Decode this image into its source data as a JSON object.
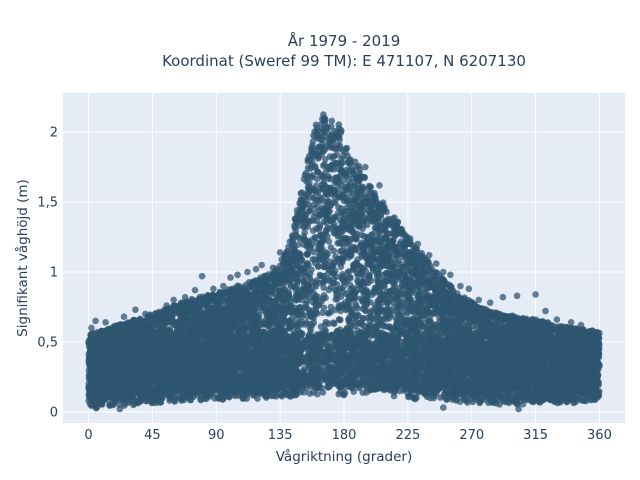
{
  "chart_data": {
    "type": "scatter",
    "title": [
      "År 1979 - 2019",
      "Koordinat (Sweref 99 TM): E 471107, N 6207130"
    ],
    "xlabel": "Vågriktning (grader)",
    "ylabel": "Signifikant våghöjd (m)",
    "xlim": [
      -18,
      378
    ],
    "ylim": [
      -0.08,
      2.28
    ],
    "xticks": [
      0,
      45,
      90,
      135,
      180,
      225,
      270,
      315,
      360
    ],
    "xtick_labels": [
      "0",
      "45",
      "90",
      "135",
      "180",
      "225",
      "270",
      "315",
      "360"
    ],
    "yticks": [
      0,
      0.5,
      1,
      1.5,
      2
    ],
    "ytick_labels": [
      "0",
      "0,5",
      "1",
      "1,5",
      "2"
    ],
    "grid": true,
    "legend": "none",
    "colors": {
      "marker": "#2f5670",
      "plot_bg": "#e5ecf6",
      "grid": "#ffffff",
      "text": "#2a3f5f"
    },
    "series": [
      {
        "marker_opacity": 0.75,
        "envelope": {
          "x": [
            0,
            20,
            45,
            70,
            90,
            110,
            130,
            140,
            150,
            160,
            167,
            175,
            185,
            200,
            215,
            230,
            245,
            260,
            275,
            290,
            305,
            320,
            340,
            360
          ],
          "y_min": [
            0.02,
            0.04,
            0.06,
            0.08,
            0.08,
            0.09,
            0.1,
            0.1,
            0.11,
            0.11,
            0.12,
            0.12,
            0.12,
            0.11,
            0.1,
            0.09,
            0.08,
            0.07,
            0.06,
            0.05,
            0.05,
            0.06,
            0.06,
            0.08
          ],
          "y_max": [
            0.55,
            0.62,
            0.7,
            0.8,
            0.85,
            0.92,
            1.0,
            1.15,
            1.6,
            2.05,
            2.15,
            2.1,
            1.85,
            1.6,
            1.4,
            1.2,
            1.0,
            0.85,
            0.75,
            0.7,
            0.68,
            0.65,
            0.6,
            0.58
          ]
        },
        "outliers": [
          {
            "x": 2,
            "y": 0.6
          },
          {
            "x": 5,
            "y": 0.65
          },
          {
            "x": 12,
            "y": 0.64
          },
          {
            "x": 25,
            "y": 0.68
          },
          {
            "x": 33,
            "y": 0.73
          },
          {
            "x": 40,
            "y": 0.7
          },
          {
            "x": 55,
            "y": 0.76
          },
          {
            "x": 60,
            "y": 0.8
          },
          {
            "x": 68,
            "y": 0.82
          },
          {
            "x": 75,
            "y": 0.87
          },
          {
            "x": 80,
            "y": 0.97
          },
          {
            "x": 88,
            "y": 0.88
          },
          {
            "x": 95,
            "y": 0.9
          },
          {
            "x": 100,
            "y": 0.96
          },
          {
            "x": 105,
            "y": 0.98
          },
          {
            "x": 112,
            "y": 1.0
          },
          {
            "x": 118,
            "y": 1.02
          },
          {
            "x": 122,
            "y": 1.05
          },
          {
            "x": 130,
            "y": 1.03
          },
          {
            "x": 135,
            "y": 1.14
          },
          {
            "x": 195,
            "y": 1.75
          },
          {
            "x": 205,
            "y": 1.62
          },
          {
            "x": 210,
            "y": 1.43
          },
          {
            "x": 220,
            "y": 1.3
          },
          {
            "x": 226,
            "y": 1.22
          },
          {
            "x": 232,
            "y": 1.2
          },
          {
            "x": 240,
            "y": 1.12
          },
          {
            "x": 245,
            "y": 1.06
          },
          {
            "x": 250,
            "y": 1.0
          },
          {
            "x": 255,
            "y": 0.98
          },
          {
            "x": 262,
            "y": 0.9
          },
          {
            "x": 268,
            "y": 0.88
          },
          {
            "x": 275,
            "y": 0.8
          },
          {
            "x": 283,
            "y": 0.78
          },
          {
            "x": 292,
            "y": 0.82
          },
          {
            "x": 302,
            "y": 0.83
          },
          {
            "x": 315,
            "y": 0.84
          },
          {
            "x": 322,
            "y": 0.72
          },
          {
            "x": 330,
            "y": 0.66
          },
          {
            "x": 340,
            "y": 0.64
          },
          {
            "x": 347,
            "y": 0.62
          },
          {
            "x": 355,
            "y": 0.58
          },
          {
            "x": 250,
            "y": 0.03
          },
          {
            "x": 22,
            "y": 0.02
          },
          {
            "x": 303,
            "y": 0.02
          }
        ]
      }
    ]
  }
}
